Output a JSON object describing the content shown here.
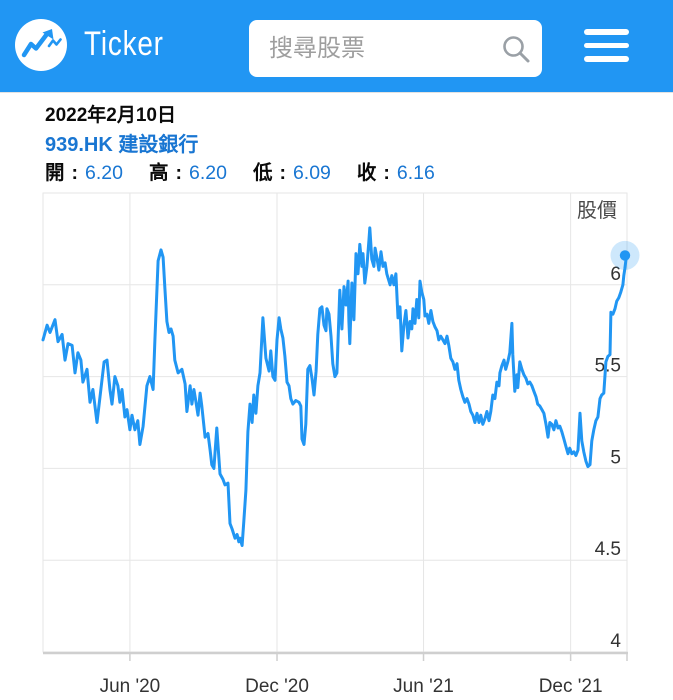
{
  "header": {
    "app_name": "Ticker",
    "search_placeholder": "搜尋股票",
    "colors": {
      "header_bg": "#2196f3",
      "icon_gray": "#9aa0a6"
    }
  },
  "info": {
    "date": "2022年2月10日",
    "symbol_name": "939.HK 建設銀行",
    "colon": ":",
    "ohlc": [
      {
        "label": "開",
        "value": "6.20"
      },
      {
        "label": "高",
        "value": "6.20"
      },
      {
        "label": "低",
        "value": "6.09"
      },
      {
        "label": "收",
        "value": "6.16"
      }
    ]
  },
  "chart_data": {
    "type": "line",
    "title": "股價",
    "series_name": "股價",
    "x_unit": "decimal_year",
    "x_range": [
      2020.12,
      2022.109
    ],
    "y_range": [
      4,
      6.5
    ],
    "y_ticks": [
      4,
      4.5,
      5,
      5.5,
      6
    ],
    "x_ticks": [
      {
        "value": 2020.416,
        "label": "Jun '20"
      },
      {
        "value": 2020.917,
        "label": "Dec '20"
      },
      {
        "value": 2021.416,
        "label": "Jun '21"
      },
      {
        "value": 2021.917,
        "label": "Dec '21"
      }
    ],
    "grid_on": true,
    "legend": "none",
    "line_color": "#2196f3",
    "halo_color": "rgba(33,150,243,0.22)",
    "grid_color": "#e6e6e6",
    "axis_color": "#cfcfcf",
    "last_close": 6.16,
    "points": [
      [
        2020.12,
        5.7
      ],
      [
        2020.134,
        5.78
      ],
      [
        2020.144,
        5.74
      ],
      [
        2020.161,
        5.81
      ],
      [
        2020.171,
        5.69
      ],
      [
        2020.185,
        5.73
      ],
      [
        2020.195,
        5.59
      ],
      [
        2020.205,
        5.68
      ],
      [
        2020.219,
        5.67
      ],
      [
        2020.229,
        5.52
      ],
      [
        2020.239,
        5.63
      ],
      [
        2020.249,
        5.59
      ],
      [
        2020.256,
        5.47
      ],
      [
        2020.27,
        5.54
      ],
      [
        2020.28,
        5.36
      ],
      [
        2020.29,
        5.43
      ],
      [
        2020.304,
        5.25
      ],
      [
        2020.314,
        5.39
      ],
      [
        2020.328,
        5.58
      ],
      [
        2020.338,
        5.59
      ],
      [
        2020.348,
        5.43
      ],
      [
        2020.355,
        5.35
      ],
      [
        2020.365,
        5.5
      ],
      [
        2020.375,
        5.45
      ],
      [
        2020.382,
        5.36
      ],
      [
        2020.389,
        5.43
      ],
      [
        2020.399,
        5.28
      ],
      [
        2020.406,
        5.32
      ],
      [
        2020.416,
        5.21
      ],
      [
        2020.423,
        5.29
      ],
      [
        2020.433,
        5.21
      ],
      [
        2020.443,
        5.26
      ],
      [
        2020.45,
        5.13
      ],
      [
        2020.461,
        5.23
      ],
      [
        2020.474,
        5.45
      ],
      [
        2020.484,
        5.5
      ],
      [
        2020.495,
        5.43
      ],
      [
        2020.501,
        5.7
      ],
      [
        2020.512,
        6.13
      ],
      [
        2020.522,
        6.19
      ],
      [
        2020.529,
        6.15
      ],
      [
        2020.535,
        5.98
      ],
      [
        2020.542,
        5.8
      ],
      [
        2020.549,
        5.74
      ],
      [
        2020.556,
        5.76
      ],
      [
        2020.563,
        5.72
      ],
      [
        2020.569,
        5.59
      ],
      [
        2020.58,
        5.52
      ],
      [
        2020.593,
        5.54
      ],
      [
        2020.604,
        5.46
      ],
      [
        2020.61,
        5.31
      ],
      [
        2020.621,
        5.45
      ],
      [
        2020.627,
        5.35
      ],
      [
        2020.634,
        5.43
      ],
      [
        2020.641,
        5.36
      ],
      [
        2020.648,
        5.29
      ],
      [
        2020.655,
        5.41
      ],
      [
        2020.661,
        5.34
      ],
      [
        2020.672,
        5.17
      ],
      [
        2020.682,
        5.19
      ],
      [
        2020.689,
        5.1
      ],
      [
        2020.695,
        5.02
      ],
      [
        2020.702,
        5.0
      ],
      [
        2020.712,
        5.22
      ],
      [
        2020.723,
        4.97
      ],
      [
        2020.733,
        4.94
      ],
      [
        2020.74,
        4.91
      ],
      [
        2020.75,
        4.92
      ],
      [
        2020.757,
        4.7
      ],
      [
        2020.764,
        4.67
      ],
      [
        2020.774,
        4.62
      ],
      [
        2020.781,
        4.64
      ],
      [
        2020.787,
        4.6
      ],
      [
        2020.791,
        4.62
      ],
      [
        2020.798,
        4.58
      ],
      [
        2020.804,
        4.71
      ],
      [
        2020.811,
        4.88
      ],
      [
        2020.818,
        5.2
      ],
      [
        2020.825,
        5.35
      ],
      [
        2020.832,
        5.25
      ],
      [
        2020.838,
        5.4
      ],
      [
        2020.845,
        5.3
      ],
      [
        2020.852,
        5.45
      ],
      [
        2020.859,
        5.52
      ],
      [
        2020.869,
        5.82
      ],
      [
        2020.879,
        5.6
      ],
      [
        2020.89,
        5.53
      ],
      [
        2020.896,
        5.64
      ],
      [
        2020.903,
        5.5
      ],
      [
        2020.91,
        5.48
      ],
      [
        2020.917,
        5.7
      ],
      [
        2020.924,
        5.82
      ],
      [
        2020.93,
        5.76
      ],
      [
        2020.937,
        5.71
      ],
      [
        2020.944,
        5.61
      ],
      [
        2020.951,
        5.47
      ],
      [
        2020.958,
        5.45
      ],
      [
        2020.964,
        5.38
      ],
      [
        2020.971,
        5.35
      ],
      [
        2020.981,
        5.37
      ],
      [
        2020.992,
        5.36
      ],
      [
        2020.998,
        5.34
      ],
      [
        2021.002,
        5.16
      ],
      [
        2021.009,
        5.13
      ],
      [
        2021.015,
        5.24
      ],
      [
        2021.022,
        5.54
      ],
      [
        2021.029,
        5.56
      ],
      [
        2021.036,
        5.49
      ],
      [
        2021.043,
        5.4
      ],
      [
        2021.05,
        5.53
      ],
      [
        2021.056,
        5.73
      ],
      [
        2021.063,
        5.87
      ],
      [
        2021.07,
        5.88
      ],
      [
        2021.077,
        5.78
      ],
      [
        2021.084,
        5.75
      ],
      [
        2021.087,
        5.87
      ],
      [
        2021.094,
        5.84
      ],
      [
        2021.101,
        5.72
      ],
      [
        2021.107,
        5.57
      ],
      [
        2021.114,
        5.5
      ],
      [
        2021.121,
        5.52
      ],
      [
        2021.131,
        5.97
      ],
      [
        2021.138,
        5.76
      ],
      [
        2021.145,
        5.99
      ],
      [
        2021.152,
        5.89
      ],
      [
        2021.159,
        6.02
      ],
      [
        2021.162,
        5.8
      ],
      [
        2021.165,
        5.68
      ],
      [
        2021.172,
        6.01
      ],
      [
        2021.179,
        5.81
      ],
      [
        2021.186,
        6.17
      ],
      [
        2021.193,
        6.06
      ],
      [
        2021.199,
        6.22
      ],
      [
        2021.206,
        6.1
      ],
      [
        2021.21,
        6.17
      ],
      [
        2021.216,
        6.01
      ],
      [
        2021.223,
        6.1
      ],
      [
        2021.23,
        6.24
      ],
      [
        2021.233,
        6.31
      ],
      [
        2021.24,
        6.14
      ],
      [
        2021.247,
        6.1
      ],
      [
        2021.251,
        6.2
      ],
      [
        2021.257,
        6.15
      ],
      [
        2021.264,
        6.08
      ],
      [
        2021.271,
        6.18
      ],
      [
        2021.278,
        6.1
      ],
      [
        2021.285,
        6.12
      ],
      [
        2021.291,
        6.06
      ],
      [
        2021.302,
        6.0
      ],
      [
        2021.308,
        6.05
      ],
      [
        2021.315,
        6.0
      ],
      [
        2021.322,
        6.06
      ],
      [
        2021.329,
        5.82
      ],
      [
        2021.336,
        5.88
      ],
      [
        2021.342,
        5.64
      ],
      [
        2021.349,
        5.78
      ],
      [
        2021.356,
        5.86
      ],
      [
        2021.363,
        5.71
      ],
      [
        2021.37,
        5.8
      ],
      [
        2021.376,
        5.76
      ],
      [
        2021.38,
        5.87
      ],
      [
        2021.387,
        5.79
      ],
      [
        2021.393,
        5.92
      ],
      [
        2021.4,
        5.82
      ],
      [
        2021.404,
        6.02
      ],
      [
        2021.41,
        5.96
      ],
      [
        2021.417,
        5.92
      ],
      [
        2021.421,
        5.83
      ],
      [
        2021.428,
        5.84
      ],
      [
        2021.434,
        5.79
      ],
      [
        2021.441,
        5.86
      ],
      [
        2021.448,
        5.8
      ],
      [
        2021.455,
        5.77
      ],
      [
        2021.462,
        5.75
      ],
      [
        2021.468,
        5.7
      ],
      [
        2021.475,
        5.72
      ],
      [
        2021.482,
        5.7
      ],
      [
        2021.489,
        5.68
      ],
      [
        2021.496,
        5.72
      ],
      [
        2021.502,
        5.67
      ],
      [
        2021.509,
        5.6
      ],
      [
        2021.516,
        5.58
      ],
      [
        2021.523,
        5.54
      ],
      [
        2021.53,
        5.57
      ],
      [
        2021.536,
        5.48
      ],
      [
        2021.543,
        5.43
      ],
      [
        2021.55,
        5.39
      ],
      [
        2021.557,
        5.36
      ],
      [
        2021.564,
        5.38
      ],
      [
        2021.571,
        5.35
      ],
      [
        2021.577,
        5.31
      ],
      [
        2021.584,
        5.29
      ],
      [
        2021.591,
        5.25
      ],
      [
        2021.598,
        5.3
      ],
      [
        2021.605,
        5.25
      ],
      [
        2021.611,
        5.29
      ],
      [
        2021.618,
        5.24
      ],
      [
        2021.625,
        5.27
      ],
      [
        2021.632,
        5.31
      ],
      [
        2021.639,
        5.26
      ],
      [
        2021.645,
        5.31
      ],
      [
        2021.652,
        5.4
      ],
      [
        2021.659,
        5.38
      ],
      [
        2021.666,
        5.47
      ],
      [
        2021.673,
        5.45
      ],
      [
        2021.676,
        5.52
      ],
      [
        2021.683,
        5.56
      ],
      [
        2021.69,
        5.59
      ],
      [
        2021.696,
        5.54
      ],
      [
        2021.703,
        5.58
      ],
      [
        2021.71,
        5.63
      ],
      [
        2021.717,
        5.79
      ],
      [
        2021.72,
        5.62
      ],
      [
        2021.727,
        5.42
      ],
      [
        2021.734,
        5.51
      ],
      [
        2021.737,
        5.44
      ],
      [
        2021.744,
        5.58
      ],
      [
        2021.751,
        5.54
      ],
      [
        2021.758,
        5.51
      ],
      [
        2021.765,
        5.49
      ],
      [
        2021.771,
        5.46
      ],
      [
        2021.778,
        5.47
      ],
      [
        2021.785,
        5.45
      ],
      [
        2021.792,
        5.42
      ],
      [
        2021.799,
        5.39
      ],
      [
        2021.805,
        5.35
      ],
      [
        2021.812,
        5.34
      ],
      [
        2021.819,
        5.32
      ],
      [
        2021.826,
        5.3
      ],
      [
        2021.833,
        5.24
      ],
      [
        2021.84,
        5.17
      ],
      [
        2021.846,
        5.25
      ],
      [
        2021.853,
        5.24
      ],
      [
        2021.86,
        5.21
      ],
      [
        2021.867,
        5.26
      ],
      [
        2021.874,
        5.22
      ],
      [
        2021.88,
        5.23
      ],
      [
        2021.887,
        5.2
      ],
      [
        2021.894,
        5.16
      ],
      [
        2021.901,
        5.12
      ],
      [
        2021.908,
        5.08
      ],
      [
        2021.914,
        5.11
      ],
      [
        2021.921,
        5.08
      ],
      [
        2021.928,
        5.09
      ],
      [
        2021.935,
        5.07
      ],
      [
        2021.942,
        5.1
      ],
      [
        2021.949,
        5.3
      ],
      [
        2021.955,
        5.15
      ],
      [
        2021.962,
        5.09
      ],
      [
        2021.969,
        5.04
      ],
      [
        2021.976,
        5.01
      ],
      [
        2021.983,
        5.02
      ],
      [
        2021.989,
        5.15
      ],
      [
        2021.996,
        5.21
      ],
      [
        2022.003,
        5.26
      ],
      [
        2022.01,
        5.28
      ],
      [
        2022.017,
        5.38
      ],
      [
        2022.023,
        5.4
      ],
      [
        2022.03,
        5.41
      ],
      [
        2022.037,
        5.58
      ],
      [
        2022.044,
        5.61
      ],
      [
        2022.051,
        5.62
      ],
      [
        2022.054,
        5.85
      ],
      [
        2022.061,
        5.84
      ],
      [
        2022.068,
        5.87
      ],
      [
        2022.074,
        5.91
      ],
      [
        2022.081,
        5.93
      ],
      [
        2022.088,
        5.96
      ],
      [
        2022.095,
        6.0
      ],
      [
        2022.098,
        6.05
      ],
      [
        2022.102,
        6.09
      ],
      [
        2022.105,
        6.13
      ],
      [
        2022.109,
        6.16
      ]
    ]
  }
}
